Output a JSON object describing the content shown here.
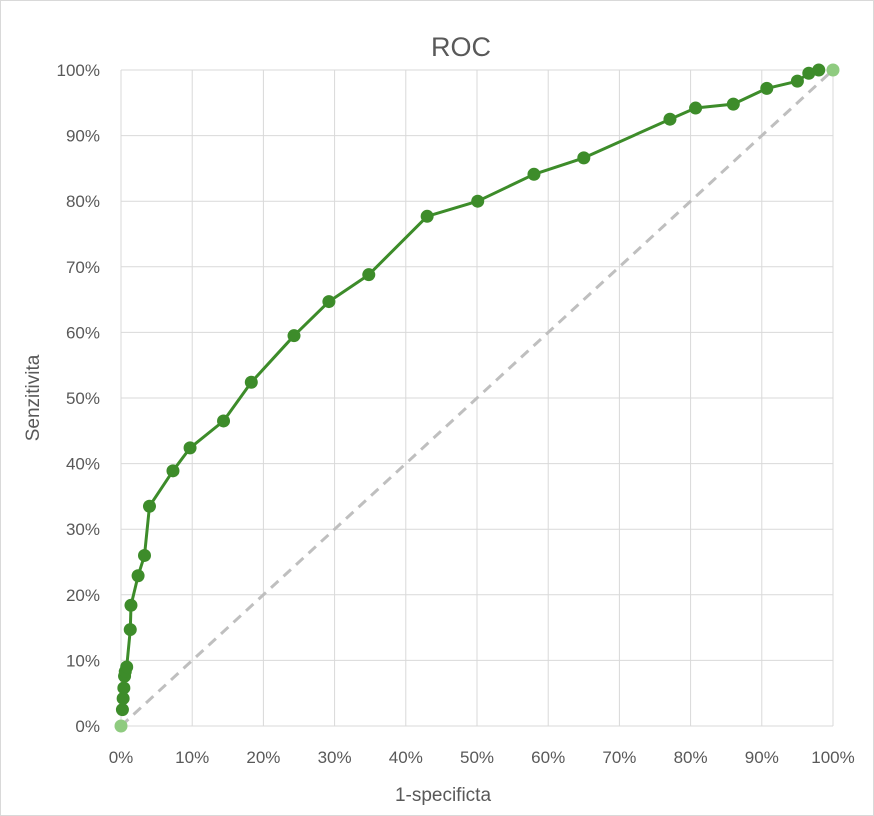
{
  "chart_data": {
    "type": "line",
    "title": "ROC",
    "xlabel": "1-specificta",
    "ylabel": "Senzitivita",
    "xlim": [
      0,
      1
    ],
    "ylim": [
      0,
      1
    ],
    "x_ticks": [
      0,
      0.1,
      0.2,
      0.3,
      0.4,
      0.5,
      0.6,
      0.7,
      0.8,
      0.9,
      1.0
    ],
    "y_ticks": [
      0,
      0.1,
      0.2,
      0.3,
      0.4,
      0.5,
      0.6,
      0.7,
      0.8,
      0.9,
      1.0
    ],
    "x_tick_labels": [
      "0%",
      "10%",
      "20%",
      "30%",
      "40%",
      "50%",
      "60%",
      "70%",
      "80%",
      "90%",
      "100%"
    ],
    "y_tick_labels": [
      "0%",
      "10%",
      "20%",
      "30%",
      "40%",
      "50%",
      "60%",
      "70%",
      "80%",
      "90%",
      "100%"
    ],
    "grid": true,
    "legend": "none",
    "series": [
      {
        "color": "#3d8c2a",
        "x": [
          0.002,
          0.003,
          0.004,
          0.005,
          0.006,
          0.008,
          0.013,
          0.014,
          0.024,
          0.033,
          0.04,
          0.073,
          0.097,
          0.144,
          0.183,
          0.243,
          0.292,
          0.348,
          0.43,
          0.501,
          0.58,
          0.65,
          0.771,
          0.807,
          0.86,
          0.907,
          0.95,
          0.966,
          0.98
        ],
        "y": [
          0.025,
          0.042,
          0.058,
          0.076,
          0.083,
          0.09,
          0.147,
          0.184,
          0.229,
          0.26,
          0.335,
          0.389,
          0.424,
          0.465,
          0.524,
          0.595,
          0.647,
          0.688,
          0.777,
          0.8,
          0.841,
          0.866,
          0.925,
          0.942,
          0.948,
          0.972,
          0.983,
          0.995,
          1.0
        ]
      },
      {
        "color": "#bfbfbf",
        "dashed": true,
        "x": [
          0,
          1
        ],
        "y": [
          0,
          1
        ]
      }
    ],
    "endpoint_markers": {
      "color": "#8fcb80",
      "x": [
        0,
        1
      ],
      "y": [
        0,
        1
      ]
    }
  }
}
